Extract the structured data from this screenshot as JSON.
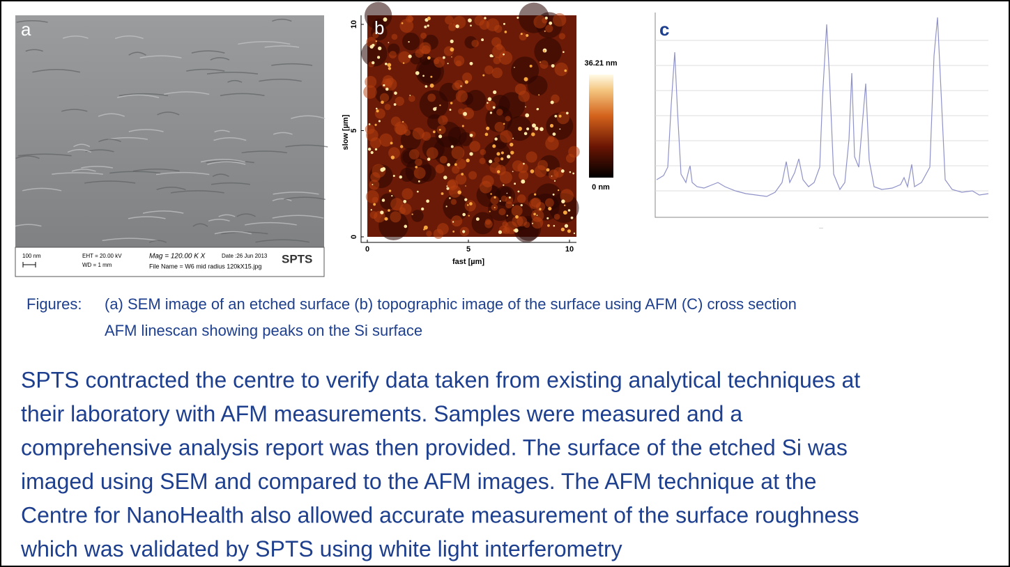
{
  "panels": {
    "a": {
      "label": "a",
      "scale_bar": "100 nm",
      "eht": "EHT = 20.00 kV",
      "wd": "WD =  1 mm",
      "mag": "Mag = 120.00 K X",
      "date": "Date :26 Jun 2013",
      "file_name": "File Name = W6 mid radius 120kX15.jpg",
      "logo": "SPTS"
    },
    "b": {
      "label": "b",
      "y_axis_label": "slow [µm]",
      "x_axis_label": "fast [µm]",
      "xlim": [
        0,
        10
      ],
      "ylim": [
        0,
        10
      ],
      "xticks": [
        0,
        5,
        10
      ],
      "yticks": [
        0,
        5,
        10
      ],
      "colorbar_max": "36.21 nm",
      "colorbar_min": "0 nm"
    },
    "c": {
      "label": "c"
    }
  },
  "caption": {
    "prefix": "Figures:",
    "lines": [
      "(a) SEM image of an etched surface (b) topographic image of the surface using AFM (C) cross section",
      "AFM linescan showing peaks on the Si surface"
    ]
  },
  "paragraph": {
    "lines": [
      "SPTS contracted the centre to verify data taken from existing analytical techniques at",
      "their laboratory with AFM measurements. Samples were measured and a",
      "comprehensive analysis report was then provided. The surface of the etched Si was",
      "imaged using SEM and compared to the AFM images. The AFM technique at the",
      "Centre for NanoHealth also allowed accurate measurement of the surface roughness",
      "which was validated by SPTS using white light interferometry"
    ]
  }
}
